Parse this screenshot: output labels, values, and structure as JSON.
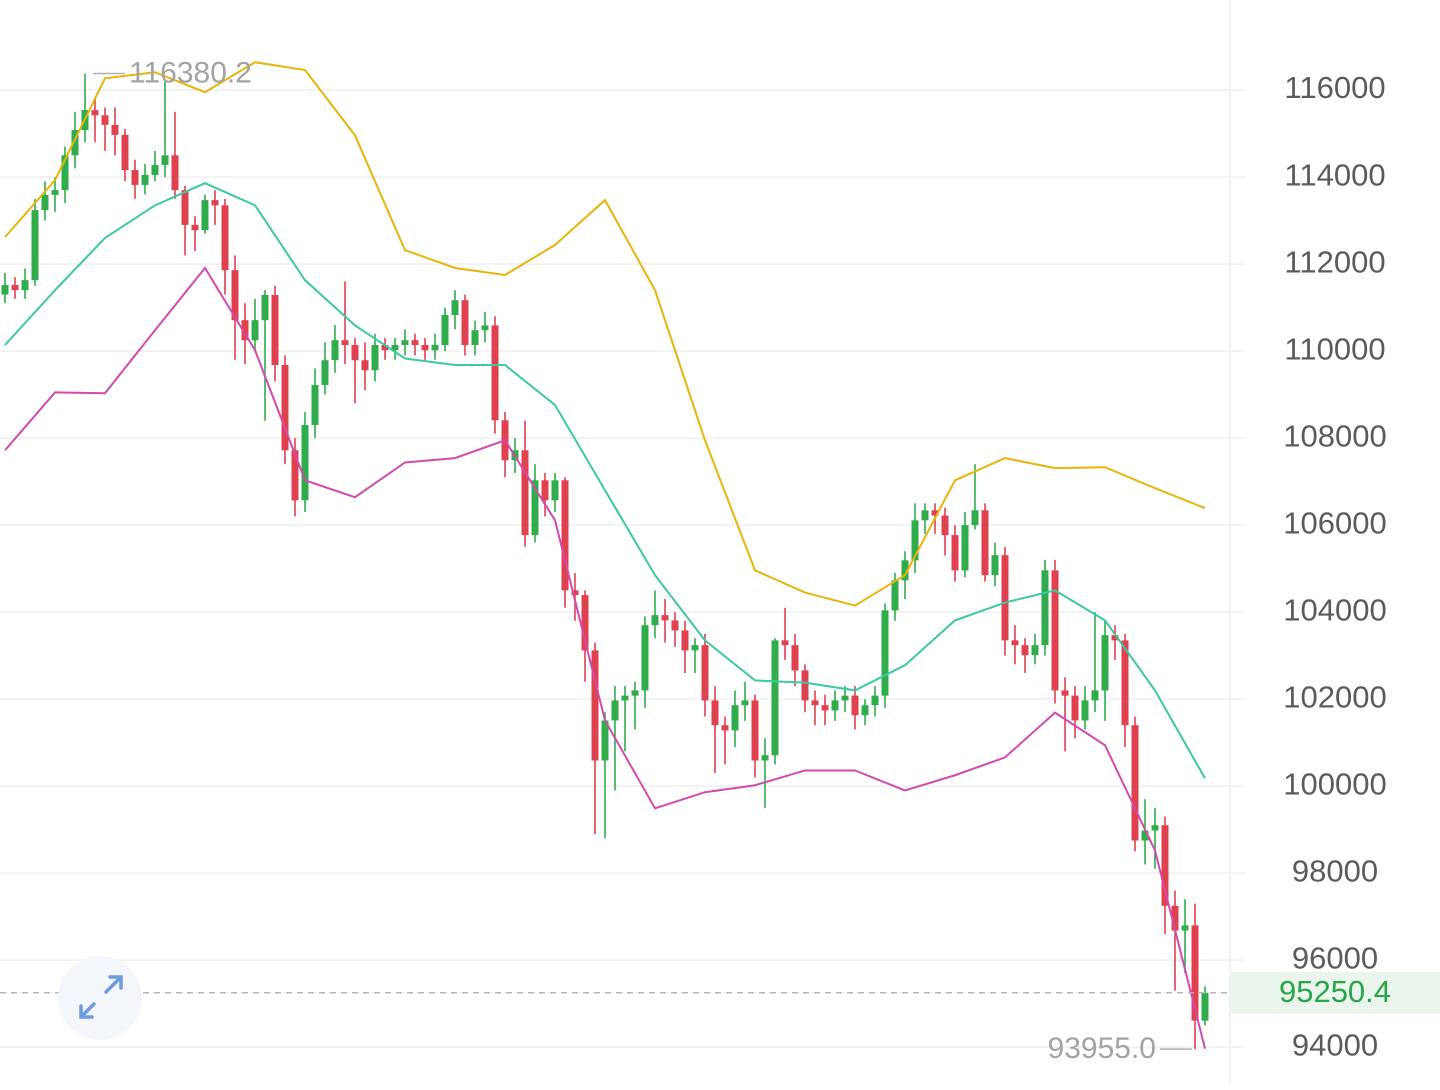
{
  "chart_data": {
    "type": "candlestick",
    "open": [
      111300,
      111520,
      111400,
      111630,
      113240,
      113590,
      113700,
      114500,
      115080,
      115540,
      115420,
      115200,
      114970,
      114160,
      113820,
      114050,
      114280,
      114500,
      113700,
      112900,
      112780,
      113470,
      113350,
      111860,
      110710,
      110250,
      110710,
      111290,
      109680,
      107720,
      106570,
      108300,
      109220,
      109790,
      110250,
      110140,
      109790,
      109560,
      110140,
      110020,
      110140,
      110250,
      110140,
      110020,
      110140,
      110830,
      111170,
      110140,
      110480,
      110590,
      108410,
      107490,
      107720,
      105770,
      107030,
      106570,
      107030,
      104500,
      104390,
      103120,
      100590,
      101510,
      101970,
      102080,
      102200,
      103700,
      103930,
      103810,
      103580,
      103120,
      103240,
      101970,
      101400,
      101280,
      101860,
      101970,
      100590,
      100710,
      103350,
      103240,
      102660,
      101970,
      101860,
      101740,
      101970,
      102080,
      101630,
      101860,
      102080,
      104040,
      104730,
      105190,
      106110,
      106340,
      106220,
      105770,
      104960,
      106000,
      106340,
      104850,
      105310,
      103350,
      103240,
      103010,
      103240,
      104960,
      102200,
      102080,
      101510,
      101970,
      102200,
      103470,
      103350,
      101400,
      98750,
      98980,
      99100,
      97250,
      96680,
      96800,
      94610
    ],
    "high": [
      111800,
      111700,
      111900,
      113500,
      113900,
      114000,
      114700,
      115500,
      116380.2,
      115800,
      115600,
      115600,
      115100,
      114400,
      114300,
      114600,
      116200,
      115500,
      113800,
      113100,
      113600,
      113700,
      113500,
      112200,
      111100,
      111200,
      111400,
      111500,
      109900,
      108000,
      108600,
      109600,
      110200,
      110600,
      111600,
      110300,
      110200,
      110400,
      110300,
      110300,
      110500,
      110400,
      110300,
      110400,
      111000,
      111400,
      111300,
      110700,
      110900,
      110800,
      108600,
      108000,
      108400,
      107400,
      107200,
      107200,
      107100,
      104900,
      104500,
      103300,
      101700,
      102300,
      102300,
      102400,
      103900,
      104500,
      104300,
      104000,
      103800,
      103400,
      103500,
      102300,
      101600,
      102200,
      102400,
      102100,
      101100,
      103400,
      104100,
      103500,
      102800,
      102200,
      102100,
      102200,
      102300,
      102300,
      102000,
      102300,
      104200,
      104900,
      105400,
      106500,
      106500,
      106500,
      106400,
      106000,
      106300,
      107400,
      106500,
      105600,
      105500,
      103700,
      103400,
      103500,
      105200,
      105200,
      102500,
      102300,
      102300,
      104000,
      103800,
      103700,
      103500,
      101600,
      99700,
      99500,
      99300,
      97600,
      97400,
      97300,
      95400
    ],
    "low": [
      111100,
      111200,
      111200,
      111500,
      113000,
      113200,
      113400,
      114200,
      114800,
      114800,
      114600,
      114500,
      113900,
      113500,
      113600,
      113900,
      114000,
      113500,
      112200,
      112300,
      112700,
      112900,
      111300,
      109800,
      109700,
      110000,
      108400,
      109300,
      107400,
      106200,
      106300,
      108000,
      109000,
      109500,
      109700,
      108800,
      109100,
      109300,
      109800,
      109800,
      109900,
      109900,
      109800,
      109800,
      110000,
      110500,
      109900,
      109900,
      110200,
      108100,
      107100,
      107200,
      105500,
      105600,
      106200,
      106300,
      104100,
      103800,
      102400,
      98900,
      98800,
      99900,
      100800,
      101300,
      101800,
      103400,
      103300,
      103200,
      102600,
      102600,
      101600,
      100300,
      100500,
      100900,
      101500,
      100200,
      99500,
      100500,
      102900,
      102300,
      101700,
      101400,
      101400,
      101500,
      101700,
      101300,
      101400,
      101600,
      101800,
      103800,
      104300,
      104900,
      105800,
      105800,
      105300,
      104700,
      104800,
      105900,
      104700,
      104600,
      103000,
      102800,
      102600,
      102800,
      103000,
      101900,
      100800,
      101100,
      101300,
      101700,
      101500,
      102900,
      100900,
      98500,
      98200,
      98100,
      96600,
      95300,
      95700,
      93955,
      94500
    ],
    "close": [
      111520,
      111400,
      111630,
      113240,
      113590,
      113700,
      114500,
      115080,
      115540,
      115420,
      115200,
      114970,
      114160,
      113820,
      114050,
      114280,
      114500,
      113700,
      112900,
      112780,
      113470,
      113350,
      111860,
      110710,
      110250,
      110710,
      111290,
      109680,
      107720,
      106570,
      108300,
      109220,
      109790,
      110250,
      110140,
      109790,
      109560,
      110140,
      110020,
      110140,
      110250,
      110140,
      110020,
      110140,
      110830,
      111170,
      110140,
      110480,
      110590,
      108410,
      107490,
      107720,
      105770,
      107030,
      106570,
      107030,
      104500,
      104390,
      103120,
      100590,
      101510,
      101970,
      102080,
      102200,
      103700,
      103930,
      103810,
      103580,
      103120,
      103240,
      101970,
      101400,
      101280,
      101860,
      101970,
      100590,
      100710,
      103350,
      103240,
      102660,
      101970,
      101860,
      101740,
      101970,
      102080,
      101630,
      101860,
      102080,
      104040,
      104730,
      105190,
      106110,
      106340,
      106220,
      105770,
      104960,
      106000,
      106340,
      104850,
      105310,
      103350,
      103240,
      103010,
      103240,
      104960,
      102200,
      102080,
      101510,
      101970,
      102200,
      103470,
      103350,
      101400,
      98750,
      98980,
      99100,
      97250,
      96680,
      96800,
      94610,
      95250.4
    ],
    "up_color": "#2fad4b",
    "down_color": "#e0414f",
    "bands": [
      {
        "color": "#e8b40a",
        "x": [
          0,
          5,
          10,
          15,
          20,
          25,
          30,
          35,
          40,
          45,
          50,
          55,
          60,
          65,
          70,
          75,
          80,
          85,
          90,
          95,
          100,
          105,
          110,
          115,
          120
        ],
        "values": [
          112620,
          113930,
          116270,
          116410,
          115950,
          116640,
          116460,
          114960,
          112320,
          111910,
          111750,
          112440,
          113470,
          111400,
          107950,
          104960,
          104450,
          104150,
          104850,
          107030,
          107540,
          107310,
          107330,
          106850,
          106390
        ]
      },
      {
        "color": "#3cc8a2",
        "x": [
          0,
          5,
          10,
          15,
          20,
          25,
          30,
          35,
          40,
          45,
          50,
          55,
          60,
          65,
          70,
          75,
          80,
          85,
          90,
          95,
          100,
          105,
          110,
          115,
          120
        ],
        "values": [
          110140,
          111400,
          112600,
          113350,
          113860,
          113350,
          111630,
          110590,
          109830,
          109680,
          109680,
          108760,
          106800,
          104850,
          103350,
          102430,
          102380,
          102200,
          102780,
          103810,
          104220,
          104500,
          103810,
          102200,
          100180
        ]
      },
      {
        "color": "#d24aae",
        "x": [
          0,
          5,
          10,
          15,
          20,
          25,
          30,
          35,
          40,
          45,
          50,
          55,
          60,
          65,
          70,
          75,
          80,
          85,
          90,
          95,
          100,
          105,
          110,
          115,
          120
        ],
        "values": [
          107720,
          109050,
          109030,
          110480,
          111910,
          110020,
          107030,
          106640,
          107440,
          107540,
          107950,
          106110,
          101510,
          99490,
          99860,
          100020,
          100360,
          100360,
          99900,
          100250,
          100660,
          101690,
          100940,
          98520,
          93966
        ]
      }
    ],
    "ylim": [
      93130,
      118070
    ],
    "yticks": [
      94000,
      96000,
      98000,
      100000,
      102000,
      104000,
      106000,
      108000,
      110000,
      112000,
      114000,
      116000
    ],
    "grid": true,
    "last_price": 95250.4,
    "annotations": [
      {
        "value": 116380.2,
        "label": "116380.2",
        "index": 8
      },
      {
        "value": 93955,
        "label": "93955.0",
        "index": 119
      }
    ]
  }
}
